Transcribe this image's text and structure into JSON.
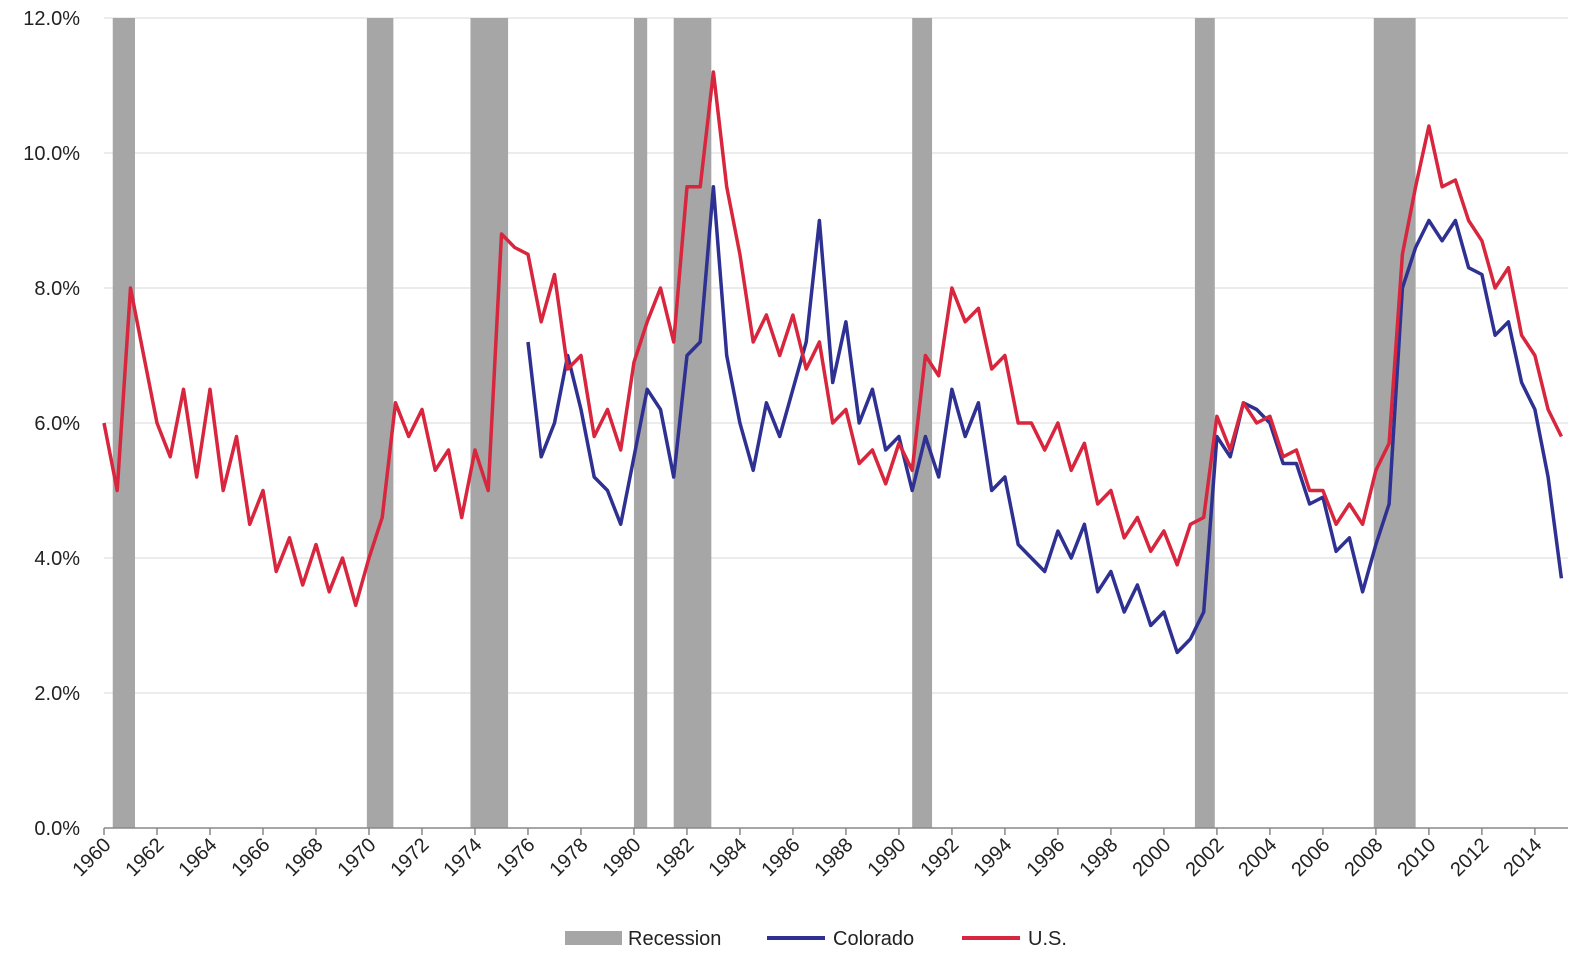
{
  "chart_data": {
    "type": "line",
    "x": [
      1960,
      1960.5,
      1961,
      1961.5,
      1962,
      1962.5,
      1963,
      1963.5,
      1964,
      1964.5,
      1965,
      1965.5,
      1966,
      1966.5,
      1967,
      1967.5,
      1968,
      1968.5,
      1969,
      1969.5,
      1970,
      1970.5,
      1971,
      1971.5,
      1972,
      1972.5,
      1973,
      1973.5,
      1974,
      1974.5,
      1975,
      1975.5,
      1976,
      1976.5,
      1977,
      1977.5,
      1978,
      1978.5,
      1979,
      1979.5,
      1980,
      1980.5,
      1981,
      1981.5,
      1982,
      1982.5,
      1983,
      1983.5,
      1984,
      1984.5,
      1985,
      1985.5,
      1986,
      1986.5,
      1987,
      1987.5,
      1988,
      1988.5,
      1989,
      1989.5,
      1990,
      1990.5,
      1991,
      1991.5,
      1992,
      1992.5,
      1993,
      1993.5,
      1994,
      1994.5,
      1995,
      1995.5,
      1996,
      1996.5,
      1997,
      1997.5,
      1998,
      1998.5,
      1999,
      1999.5,
      2000,
      2000.5,
      2001,
      2001.5,
      2002,
      2002.5,
      2003,
      2003.5,
      2004,
      2004.5,
      2005,
      2005.5,
      2006,
      2006.5,
      2007,
      2007.5,
      2008,
      2008.5,
      2009,
      2009.5,
      2010,
      2010.5,
      2011,
      2011.5,
      2012,
      2012.5,
      2013,
      2013.5,
      2014,
      2014.5,
      2015
    ],
    "series": [
      {
        "name": "Colorado",
        "color": "#2e3192",
        "values": [
          null,
          null,
          null,
          null,
          null,
          null,
          null,
          null,
          null,
          null,
          null,
          null,
          null,
          null,
          null,
          null,
          null,
          null,
          null,
          null,
          null,
          null,
          null,
          null,
          null,
          null,
          null,
          null,
          null,
          null,
          null,
          null,
          7.2,
          5.5,
          6.0,
          7.0,
          6.2,
          5.2,
          5.0,
          4.5,
          5.5,
          6.5,
          6.2,
          5.2,
          7.0,
          7.2,
          9.5,
          7.0,
          6.0,
          5.3,
          6.3,
          5.8,
          6.5,
          7.2,
          9.0,
          6.6,
          7.5,
          6.0,
          6.5,
          5.6,
          5.8,
          5.0,
          5.8,
          5.2,
          6.5,
          5.8,
          6.3,
          5.0,
          5.2,
          4.2,
          4.0,
          3.8,
          4.4,
          4.0,
          4.5,
          3.5,
          3.8,
          3.2,
          3.6,
          3.0,
          3.2,
          2.6,
          2.8,
          3.2,
          5.8,
          5.5,
          6.3,
          6.2,
          6.0,
          5.4,
          5.4,
          4.8,
          4.9,
          4.1,
          4.3,
          3.5,
          4.2,
          4.8,
          8.0,
          8.6,
          9.0,
          8.7,
          9.0,
          8.3,
          8.2,
          7.3,
          7.5,
          6.6,
          6.2,
          5.2,
          3.7
        ]
      },
      {
        "name": "U.S.",
        "color": "#d7263d",
        "values": [
          6.0,
          5.0,
          8.0,
          7.0,
          6.0,
          5.5,
          6.5,
          5.2,
          6.5,
          5.0,
          5.8,
          4.5,
          5.0,
          3.8,
          4.3,
          3.6,
          4.2,
          3.5,
          4.0,
          3.3,
          4.0,
          4.6,
          6.3,
          5.8,
          6.2,
          5.3,
          5.6,
          4.6,
          5.6,
          5.0,
          8.8,
          8.6,
          8.5,
          7.5,
          8.2,
          6.8,
          7.0,
          5.8,
          6.2,
          5.6,
          6.9,
          7.5,
          8.0,
          7.2,
          9.5,
          9.5,
          11.2,
          9.5,
          8.5,
          7.2,
          7.6,
          7.0,
          7.6,
          6.8,
          7.2,
          6.0,
          6.2,
          5.4,
          5.6,
          5.1,
          5.7,
          5.3,
          7.0,
          6.7,
          8.0,
          7.5,
          7.7,
          6.8,
          7.0,
          6.0,
          6.0,
          5.6,
          6.0,
          5.3,
          5.7,
          4.8,
          5.0,
          4.3,
          4.6,
          4.1,
          4.4,
          3.9,
          4.5,
          4.6,
          6.1,
          5.6,
          6.3,
          6.0,
          6.1,
          5.5,
          5.6,
          5.0,
          5.0,
          4.5,
          4.8,
          4.5,
          5.3,
          5.7,
          8.5,
          9.5,
          10.4,
          9.5,
          9.6,
          9.0,
          8.7,
          8.0,
          8.3,
          7.3,
          7.0,
          6.2,
          5.8
        ]
      }
    ],
    "recession_name": "Recession",
    "recession_color": "#a6a6a6",
    "recessions": [
      [
        1960.33,
        1961.17
      ],
      [
        1969.92,
        1970.92
      ],
      [
        1973.83,
        1975.25
      ],
      [
        1980.0,
        1980.5
      ],
      [
        1981.5,
        1982.92
      ],
      [
        1990.5,
        1991.25
      ],
      [
        2001.17,
        2001.92
      ],
      [
        2007.92,
        2009.5
      ]
    ],
    "xlim": [
      1960,
      2015.25
    ],
    "xticks": [
      1960,
      1962,
      1964,
      1966,
      1968,
      1970,
      1972,
      1974,
      1976,
      1978,
      1980,
      1982,
      1984,
      1986,
      1988,
      1990,
      1992,
      1994,
      1996,
      1998,
      2000,
      2002,
      2004,
      2006,
      2008,
      2010,
      2012,
      2014
    ],
    "ylim": [
      0,
      12
    ],
    "yticks": [
      {
        "value": 0,
        "label": "0.0%"
      },
      {
        "value": 2,
        "label": "2.0%"
      },
      {
        "value": 4,
        "label": "4.0%"
      },
      {
        "value": 6,
        "label": "6.0%"
      },
      {
        "value": 8,
        "label": "8.0%"
      },
      {
        "value": 10,
        "label": "10.0%"
      },
      {
        "value": 12,
        "label": "12.0%"
      }
    ],
    "grid": true
  }
}
